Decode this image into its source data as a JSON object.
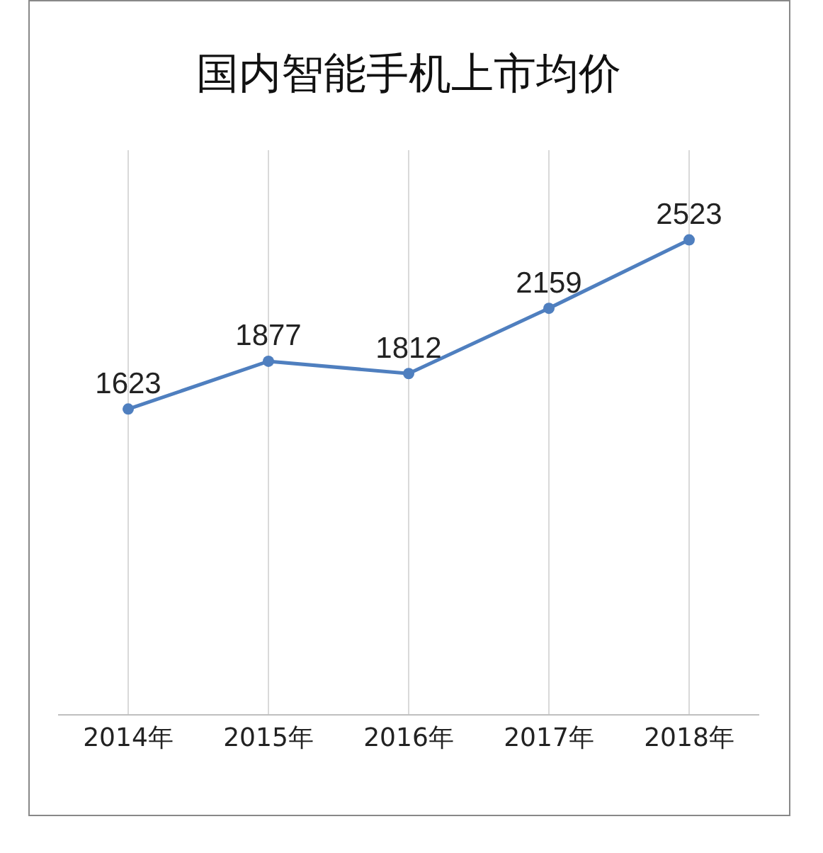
{
  "chart_data": {
    "type": "line",
    "title": "国内智能手机上市均价",
    "categories": [
      "2014年",
      "2015年",
      "2016年",
      "2017年",
      "2018年"
    ],
    "series": [
      {
        "color": "#4f7fbf",
        "values": [
          1623,
          1877,
          1812,
          2159,
          2523
        ]
      }
    ],
    "ylim": [
      0,
      3000
    ],
    "tick_labels": "x",
    "grid": "x",
    "marker": "circle",
    "line_style": "solid",
    "data_labels": true
  }
}
